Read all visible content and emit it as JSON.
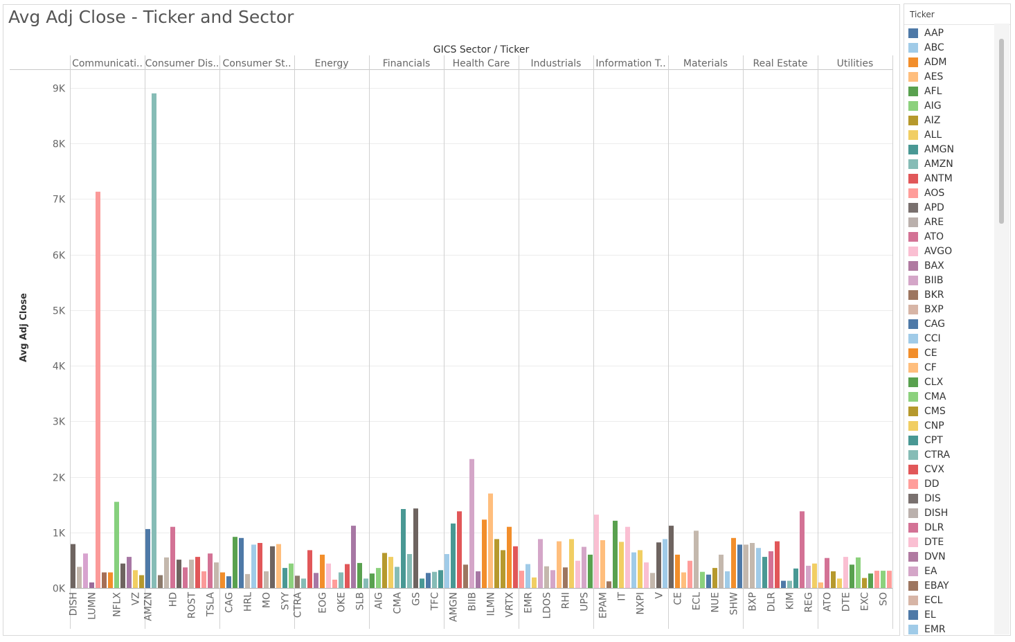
{
  "chart_data": {
    "type": "bar",
    "title": "Avg Adj Close - Ticker and Sector",
    "column_header": "GICS Sector / Ticker",
    "ylabel": "Avg Adj Close",
    "ylim": [
      0,
      9300
    ],
    "y_ticks": [
      0,
      1000,
      2000,
      3000,
      4000,
      5000,
      6000,
      7000,
      8000,
      9000
    ],
    "y_tick_labels": [
      "0K",
      "1K",
      "2K",
      "3K",
      "4K",
      "5K",
      "6K",
      "7K",
      "8K",
      "9K"
    ],
    "gridlines": true,
    "legend_position": "right",
    "sectors": [
      {
        "label": "Communicati..",
        "bars": [
          {
            "value": 790,
            "color": "#6e6460",
            "tick": "DISH"
          },
          {
            "value": 380,
            "color": "#c4b8ad"
          },
          {
            "value": 620,
            "color": "#d8a3cf"
          },
          {
            "value": 100,
            "color": "#9c6b9a",
            "tick": "LUMN"
          },
          {
            "value": 7130,
            "color": "#fb9a99"
          },
          {
            "value": 280,
            "color": "#a56f57"
          },
          {
            "value": 280,
            "color": "#f28e2b"
          },
          {
            "value": 1550,
            "color": "#86d07d",
            "tick": "NFLX"
          },
          {
            "value": 440,
            "color": "#6e6460"
          },
          {
            "value": 560,
            "color": "#a777a4"
          },
          {
            "value": 320,
            "color": "#f1ce63",
            "tick": "VZ"
          },
          {
            "value": 230,
            "color": "#b6992d"
          }
        ]
      },
      {
        "label": "Consumer Dis..",
        "bars": [
          {
            "value": 1060,
            "color": "#4e79a7",
            "tick": "AMZN"
          },
          {
            "value": 8900,
            "color": "#86bcb6"
          },
          {
            "value": 230,
            "color": "#8c7a6b"
          },
          {
            "value": 550,
            "color": "#c4b8ad"
          },
          {
            "value": 1100,
            "color": "#d37295",
            "tick": "HD"
          },
          {
            "value": 510,
            "color": "#6e6460"
          },
          {
            "value": 370,
            "color": "#d37295"
          },
          {
            "value": 510,
            "color": "#c4b8ad",
            "tick": "ROST"
          },
          {
            "value": 560,
            "color": "#e15759"
          },
          {
            "value": 300,
            "color": "#fb9a99"
          },
          {
            "value": 620,
            "color": "#d37295",
            "tick": "TSLA"
          },
          {
            "value": 460,
            "color": "#c4b8ad"
          }
        ]
      },
      {
        "label": "Consumer St..",
        "bars": [
          {
            "value": 280,
            "color": "#f28e2b"
          },
          {
            "value": 210,
            "color": "#4e79a7",
            "tick": "CAG"
          },
          {
            "value": 920,
            "color": "#59a14f"
          },
          {
            "value": 900,
            "color": "#4e79a7"
          },
          {
            "value": 250,
            "color": "#c4b8ad",
            "tick": "HRL"
          },
          {
            "value": 780,
            "color": "#a0cbe8"
          },
          {
            "value": 810,
            "color": "#e15759"
          },
          {
            "value": 300,
            "color": "#c4b8ad",
            "tick": "MO"
          },
          {
            "value": 750,
            "color": "#6e6460"
          },
          {
            "value": 790,
            "color": "#ffbe7d"
          },
          {
            "value": 360,
            "color": "#499894",
            "tick": "SYY"
          },
          {
            "value": 440,
            "color": "#8cd17d"
          }
        ]
      },
      {
        "label": "Energy",
        "bars": [
          {
            "value": 220,
            "color": "#8c7a6b",
            "tick": "CTRA"
          },
          {
            "value": 170,
            "color": "#86bcb6"
          },
          {
            "value": 680,
            "color": "#e15759"
          },
          {
            "value": 270,
            "color": "#a777a4"
          },
          {
            "value": 600,
            "color": "#f28e2b",
            "tick": "EOG"
          },
          {
            "value": 440,
            "color": "#fabfd2"
          },
          {
            "value": 150,
            "color": "#ff9d9a"
          },
          {
            "value": 280,
            "color": "#86bcb6",
            "tick": "OKE"
          },
          {
            "value": 430,
            "color": "#e15759"
          },
          {
            "value": 1120,
            "color": "#a777a4"
          },
          {
            "value": 450,
            "color": "#59a14f",
            "tick": "SLB"
          },
          {
            "value": 170,
            "color": "#86bcb6"
          }
        ]
      },
      {
        "label": "Financials",
        "bars": [
          {
            "value": 260,
            "color": "#59a14f"
          },
          {
            "value": 360,
            "color": "#8cd17d",
            "tick": "AIG"
          },
          {
            "value": 630,
            "color": "#b6992d"
          },
          {
            "value": 560,
            "color": "#f1ce63"
          },
          {
            "value": 380,
            "color": "#86bcb6",
            "tick": "CMA"
          },
          {
            "value": 1420,
            "color": "#499894"
          },
          {
            "value": 610,
            "color": "#86bcb6"
          },
          {
            "value": 1430,
            "color": "#6e6460",
            "tick": "GS"
          },
          {
            "value": 170,
            "color": "#499894"
          },
          {
            "value": 270,
            "color": "#4e79a7"
          },
          {
            "value": 290,
            "color": "#86bcb6",
            "tick": "TFC"
          },
          {
            "value": 320,
            "color": "#499894"
          }
        ]
      },
      {
        "label": "Health Care",
        "bars": [
          {
            "value": 610,
            "color": "#a0cbe8"
          },
          {
            "value": 1160,
            "color": "#499894",
            "tick": "AMGN"
          },
          {
            "value": 1380,
            "color": "#e15759"
          },
          {
            "value": 420,
            "color": "#9d7660"
          },
          {
            "value": 2320,
            "color": "#d4a6c8",
            "tick": "BIIB"
          },
          {
            "value": 300,
            "color": "#a777a4"
          },
          {
            "value": 1230,
            "color": "#f28e2b"
          },
          {
            "value": 1700,
            "color": "#ffbe7d",
            "tick": "ILMN"
          },
          {
            "value": 880,
            "color": "#b6992d"
          },
          {
            "value": 680,
            "color": "#b6992d"
          },
          {
            "value": 1100,
            "color": "#f28e2b",
            "tick": "VRTX"
          },
          {
            "value": 750,
            "color": "#e15759"
          }
        ]
      },
      {
        "label": "Industrials",
        "bars": [
          {
            "value": 310,
            "color": "#ff9d9a"
          },
          {
            "value": 430,
            "color": "#a0cbe8",
            "tick": "EMR"
          },
          {
            "value": 190,
            "color": "#f1ce63"
          },
          {
            "value": 880,
            "color": "#d4a6c8"
          },
          {
            "value": 390,
            "color": "#c4b8ad",
            "tick": "LDOS"
          },
          {
            "value": 320,
            "color": "#d4a6c8"
          },
          {
            "value": 840,
            "color": "#ffbe7d"
          },
          {
            "value": 370,
            "color": "#9d7660",
            "tick": "RHI"
          },
          {
            "value": 880,
            "color": "#f1ce63"
          },
          {
            "value": 490,
            "color": "#fabfd2"
          },
          {
            "value": 740,
            "color": "#d4a6c8",
            "tick": "UPS"
          },
          {
            "value": 600,
            "color": "#59a14f"
          }
        ]
      },
      {
        "label": "Information T..",
        "bars": [
          {
            "value": 1320,
            "color": "#fabfd2"
          },
          {
            "value": 860,
            "color": "#ffbe7d",
            "tick": "EPAM"
          },
          {
            "value": 120,
            "color": "#9d7660"
          },
          {
            "value": 1210,
            "color": "#59a14f"
          },
          {
            "value": 830,
            "color": "#f1ce63",
            "tick": "IT"
          },
          {
            "value": 1100,
            "color": "#fabfd2"
          },
          {
            "value": 640,
            "color": "#a0cbe8"
          },
          {
            "value": 680,
            "color": "#f1ce63",
            "tick": "NXPI"
          },
          {
            "value": 460,
            "color": "#fabfd2"
          },
          {
            "value": 270,
            "color": "#c4b8ad"
          },
          {
            "value": 820,
            "color": "#6e6460",
            "tick": "V"
          },
          {
            "value": 880,
            "color": "#a0cbe8"
          }
        ]
      },
      {
        "label": "Materials",
        "bars": [
          {
            "value": 1120,
            "color": "#6e6460"
          },
          {
            "value": 600,
            "color": "#f28e2b",
            "tick": "CE"
          },
          {
            "value": 280,
            "color": "#ffbe7d"
          },
          {
            "value": 490,
            "color": "#ff9d9a"
          },
          {
            "value": 1030,
            "color": "#c4b8ad",
            "tick": "ECL"
          },
          {
            "value": 290,
            "color": "#8cd17d"
          },
          {
            "value": 240,
            "color": "#4e79a7"
          },
          {
            "value": 360,
            "color": "#b6992d",
            "tick": "NUE"
          },
          {
            "value": 600,
            "color": "#c4b8ad"
          },
          {
            "value": 300,
            "color": "#a0cbe8"
          },
          {
            "value": 900,
            "color": "#f28e2b",
            "tick": "SHW"
          },
          {
            "value": 780,
            "color": "#4e79a7"
          }
        ]
      },
      {
        "label": "Real Estate",
        "bars": [
          {
            "value": 780,
            "color": "#c4b8ad"
          },
          {
            "value": 810,
            "color": "#c4b8ad",
            "tick": "BXP"
          },
          {
            "value": 720,
            "color": "#a0cbe8"
          },
          {
            "value": 560,
            "color": "#499894"
          },
          {
            "value": 660,
            "color": "#d37295",
            "tick": "DLR"
          },
          {
            "value": 840,
            "color": "#e15759"
          },
          {
            "value": 130,
            "color": "#4e79a7"
          },
          {
            "value": 130,
            "color": "#86bcb6",
            "tick": "KIM"
          },
          {
            "value": 350,
            "color": "#499894"
          },
          {
            "value": 1380,
            "color": "#d37295"
          },
          {
            "value": 400,
            "color": "#d4a6c8",
            "tick": "REG"
          },
          {
            "value": 440,
            "color": "#f1ce63"
          }
        ]
      },
      {
        "label": "Utilities",
        "bars": [
          {
            "value": 100,
            "color": "#ffbe7d"
          },
          {
            "value": 540,
            "color": "#d37295",
            "tick": "ATO"
          },
          {
            "value": 300,
            "color": "#b6992d"
          },
          {
            "value": 170,
            "color": "#f1ce63"
          },
          {
            "value": 560,
            "color": "#fabfd2",
            "tick": "DTE"
          },
          {
            "value": 420,
            "color": "#59a14f"
          },
          {
            "value": 550,
            "color": "#8cd17d"
          },
          {
            "value": 180,
            "color": "#b6992d",
            "tick": "EXC"
          },
          {
            "value": 260,
            "color": "#59a14f"
          },
          {
            "value": 310,
            "color": "#ff9d9a"
          },
          {
            "value": 310,
            "color": "#8cd17d",
            "tick": "SO"
          },
          {
            "value": 310,
            "color": "#ff9d9a"
          }
        ]
      }
    ]
  },
  "legend": {
    "title": "Ticker",
    "items": [
      {
        "label": "AAP",
        "color": "#4e79a7"
      },
      {
        "label": "ABC",
        "color": "#a0cbe8"
      },
      {
        "label": "ADM",
        "color": "#f28e2b"
      },
      {
        "label": "AES",
        "color": "#ffbe7d"
      },
      {
        "label": "AFL",
        "color": "#59a14f"
      },
      {
        "label": "AIG",
        "color": "#8cd17d"
      },
      {
        "label": "AIZ",
        "color": "#b6992d"
      },
      {
        "label": "ALL",
        "color": "#f1ce63"
      },
      {
        "label": "AMGN",
        "color": "#499894"
      },
      {
        "label": "AMZN",
        "color": "#86bcb6"
      },
      {
        "label": "ANTM",
        "color": "#e15759"
      },
      {
        "label": "AOS",
        "color": "#ff9d9a"
      },
      {
        "label": "APD",
        "color": "#79706e"
      },
      {
        "label": "ARE",
        "color": "#bab0ac"
      },
      {
        "label": "ATO",
        "color": "#d37295"
      },
      {
        "label": "AVGO",
        "color": "#fabfd2"
      },
      {
        "label": "BAX",
        "color": "#b07aa1"
      },
      {
        "label": "BIIB",
        "color": "#d4a6c8"
      },
      {
        "label": "BKR",
        "color": "#9d7660"
      },
      {
        "label": "BXP",
        "color": "#d7b5a6"
      },
      {
        "label": "CAG",
        "color": "#4e79a7"
      },
      {
        "label": "CCI",
        "color": "#a0cbe8"
      },
      {
        "label": "CE",
        "color": "#f28e2b"
      },
      {
        "label": "CF",
        "color": "#ffbe7d"
      },
      {
        "label": "CLX",
        "color": "#59a14f"
      },
      {
        "label": "CMA",
        "color": "#8cd17d"
      },
      {
        "label": "CMS",
        "color": "#b6992d"
      },
      {
        "label": "CNP",
        "color": "#f1ce63"
      },
      {
        "label": "CPT",
        "color": "#499894"
      },
      {
        "label": "CTRA",
        "color": "#86bcb6"
      },
      {
        "label": "CVX",
        "color": "#e15759"
      },
      {
        "label": "DD",
        "color": "#ff9d9a"
      },
      {
        "label": "DIS",
        "color": "#79706e"
      },
      {
        "label": "DISH",
        "color": "#bab0ac"
      },
      {
        "label": "DLR",
        "color": "#d37295"
      },
      {
        "label": "DTE",
        "color": "#fabfd2"
      },
      {
        "label": "DVN",
        "color": "#b07aa1"
      },
      {
        "label": "EA",
        "color": "#d4a6c8"
      },
      {
        "label": "EBAY",
        "color": "#9d7660"
      },
      {
        "label": "ECL",
        "color": "#d7b5a6"
      },
      {
        "label": "EL",
        "color": "#4e79a7"
      },
      {
        "label": "EMR",
        "color": "#a0cbe8"
      }
    ]
  }
}
